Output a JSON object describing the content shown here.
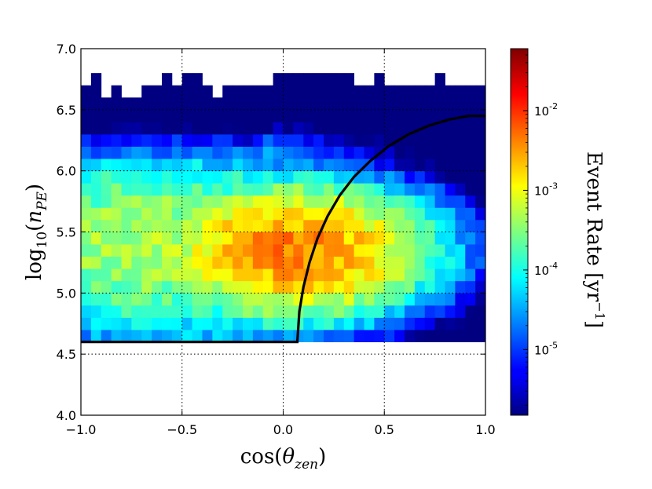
{
  "chart_data": {
    "type": "heatmap",
    "xlabel": {
      "prefix": "cos(",
      "symbol": "θ",
      "sub": "zen",
      "suffix": ")"
    },
    "ylabel": {
      "prefix": "log",
      "base": "10",
      "open": "(",
      "symbol": "n",
      "sub": "PE",
      "close": ")"
    },
    "xlim": [
      -1.0,
      1.0
    ],
    "ylim": [
      4.0,
      7.0
    ],
    "xticks": [
      "−1.0",
      "−0.5",
      "0.0",
      "0.5",
      "1.0"
    ],
    "xtick_values": [
      -1.0,
      -0.5,
      0.0,
      0.5,
      1.0
    ],
    "yticks": [
      "4.0",
      "4.5",
      "5.0",
      "5.5",
      "6.0",
      "6.5",
      "7.0"
    ],
    "ytick_values": [
      4.0,
      4.5,
      5.0,
      5.5,
      6.0,
      6.5,
      7.0
    ],
    "grid": true,
    "colorbar": {
      "label": "Event Rate  [yr",
      "label_exp": "−1",
      "label_close": "]",
      "scale": "log",
      "range": [
        1.5e-06,
        0.06
      ],
      "ticks": [
        {
          "base": "10",
          "exp": "-5",
          "value": 1e-05
        },
        {
          "base": "10",
          "exp": "-4",
          "value": 0.0001
        },
        {
          "base": "10",
          "exp": "-3",
          "value": 0.001
        },
        {
          "base": "10",
          "exp": "-2",
          "value": 0.01
        }
      ]
    },
    "grid_cells": {
      "x_start": -1.0,
      "x_end": 1.0,
      "n_x": 40,
      "y_start": 4.6,
      "y_end": 6.8,
      "n_y": 22
    },
    "cut_curve": {
      "description_free": true,
      "points": [
        [
          -1.0,
          4.6
        ],
        [
          0.07,
          4.6
        ],
        [
          0.08,
          4.85
        ],
        [
          0.1,
          5.05
        ],
        [
          0.13,
          5.25
        ],
        [
          0.17,
          5.45
        ],
        [
          0.22,
          5.63
        ],
        [
          0.28,
          5.8
        ],
        [
          0.35,
          5.95
        ],
        [
          0.43,
          6.08
        ],
        [
          0.52,
          6.2
        ],
        [
          0.62,
          6.3
        ],
        [
          0.72,
          6.37
        ],
        [
          0.82,
          6.42
        ],
        [
          0.92,
          6.45
        ],
        [
          1.0,
          6.45
        ]
      ]
    }
  }
}
